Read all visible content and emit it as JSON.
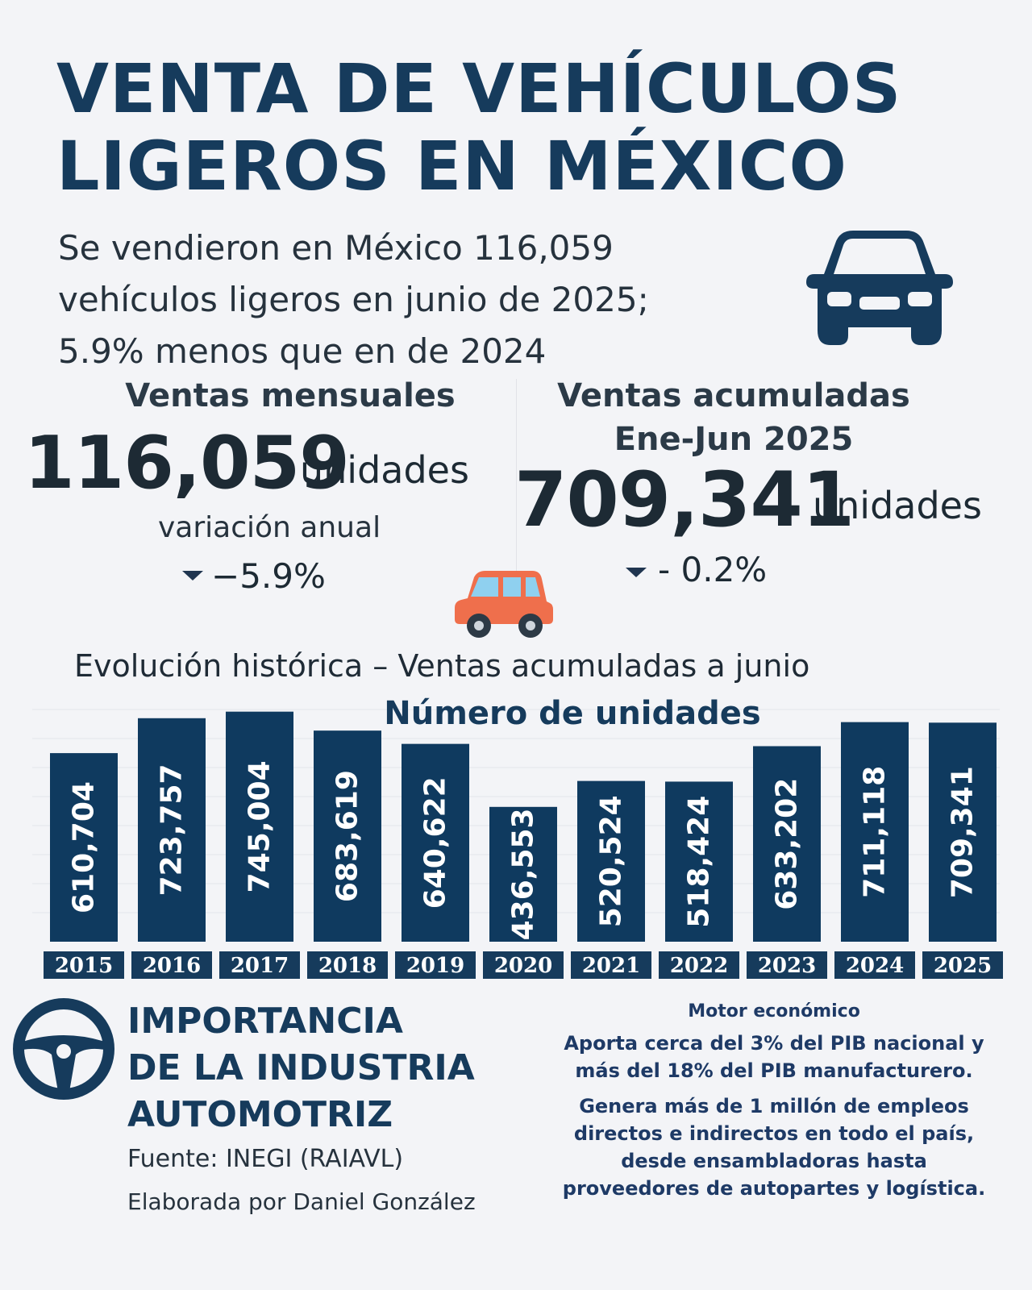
{
  "title": {
    "line1": "VENTA DE VEHÍCULOS",
    "line2": "LIGEROS EN MÉXICO"
  },
  "subtitle": {
    "line1": "Se vendieron en México 116,059",
    "line2": "vehículos ligeros en junio de 2025;",
    "line3": "5.9%  menos que en de 2024"
  },
  "monthly": {
    "heading": "Ventas mensuales",
    "value": "116,059",
    "unit": "unidades",
    "variation_label": "variación anual",
    "variation_value": "−5.9%"
  },
  "cumulative": {
    "heading_line1": "Ventas acumuladas",
    "heading_line2": "Ene-Jun 2025",
    "value": "709,341",
    "unit": "unidades",
    "variation_value": "- 0.2%"
  },
  "chart_heading": "Evolución histórica – Ventas acumuladas a junio",
  "chart_data": {
    "type": "bar",
    "title": "Número de unidades",
    "categories": [
      "2015",
      "2016",
      "2017",
      "2018",
      "2019",
      "2020",
      "2021",
      "2022",
      "2023",
      "2024",
      "2025"
    ],
    "values": [
      610704,
      723757,
      745004,
      683619,
      640622,
      436553,
      520524,
      518424,
      633202,
      711118,
      709341
    ],
    "labels": [
      "610,704",
      "723,757",
      "745,004",
      "683,619",
      "640,622",
      "436,553",
      "520,524",
      "518,424",
      "633,202",
      "711,118",
      "709,341"
    ],
    "grid": true,
    "bar_color": "#0f3a5f",
    "label_color": "#ffffff"
  },
  "importance": {
    "line1": "IMPORTANCIA",
    "line2": "DE LA INDUSTRIA",
    "line3": "AUTOMOTRIZ"
  },
  "source": "Fuente: INEGI (RAIAVL)",
  "credit": "Elaborada por Daniel González",
  "economic": {
    "heading": "Motor económico",
    "para1_line1": "Aporta cerca del 3% del PIB nacional y",
    "para1_line2": "más del 18% del PIB manufacturero.",
    "para2_line1": "Genera más de 1 millón de empleos",
    "para2_line2": "directos e indirectos en todo el país,",
    "para2_line3": "desde ensambladoras hasta",
    "para2_line4": "proveedores de autopartes y logística."
  },
  "colors": {
    "navy": "#163b5c",
    "bar": "#0f3a5f",
    "accent_orange": "#ef6f4c"
  }
}
